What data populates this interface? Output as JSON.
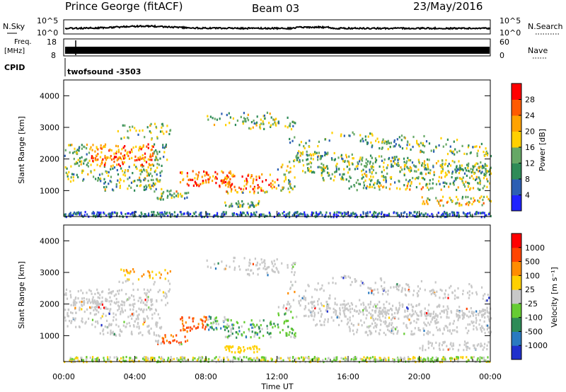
{
  "header": {
    "title": "Prince George (fitACF)",
    "beam": "Beam 03",
    "date": "23/May/2016"
  },
  "top_panels": {
    "nsky_label": "N.Sky",
    "nsky_ticks": [
      "10^5",
      "10^0"
    ],
    "nsearch_label": "N.Search",
    "nsearch_ticks": [
      "10^5",
      "10^0"
    ],
    "freq_label_1": "Freq.",
    "freq_label_2": "[MHz]",
    "freq_ticks": [
      "18",
      "8"
    ],
    "nave_label": "Nave",
    "nave_ticks": [
      "60",
      "0"
    ],
    "cpid_label": "CPID",
    "cpid_value": "twofsound  -3503"
  },
  "chart_data": [
    {
      "type": "heatmap",
      "name": "power",
      "ylabel": "Slant Range [km]",
      "ylim": [
        180,
        4500
      ],
      "yticks": [
        "1000",
        "2000",
        "3000",
        "4000"
      ],
      "xlim": [
        0,
        24
      ],
      "colorbar_label": "Power [dB]",
      "colorbar_ticks": [
        "4",
        "8",
        "12",
        "16",
        "20",
        "24",
        "28"
      ],
      "colors": [
        "#1f22ff",
        "#2c5fb3",
        "#2e8b57",
        "#66a866",
        "#ffd000",
        "#ffa200",
        "#ff5a00",
        "#ff0000"
      ]
    },
    {
      "type": "heatmap",
      "name": "velocity",
      "ylabel": "Slant Range [km]",
      "ylim": [
        180,
        4500
      ],
      "yticks": [
        "1000",
        "2000",
        "3000",
        "4000"
      ],
      "xlim": [
        0,
        24
      ],
      "xticks": [
        "00:00",
        "04:00",
        "08:00",
        "12:00",
        "16:00",
        "20:00",
        "00:00"
      ],
      "xlabel": "Time UT",
      "colorbar_label": "Velocity [m s⁻¹]",
      "colorbar_ticks": [
        "1000",
        "500",
        "100",
        "25",
        "-25",
        "-100",
        "-500",
        "-1000"
      ],
      "colors": [
        "#2030cc",
        "#2a7ac0",
        "#2e8b57",
        "#66cc33",
        "#c8c8c8",
        "#ffd000",
        "#ff8c00",
        "#ff4400",
        "#ff0000"
      ]
    }
  ]
}
